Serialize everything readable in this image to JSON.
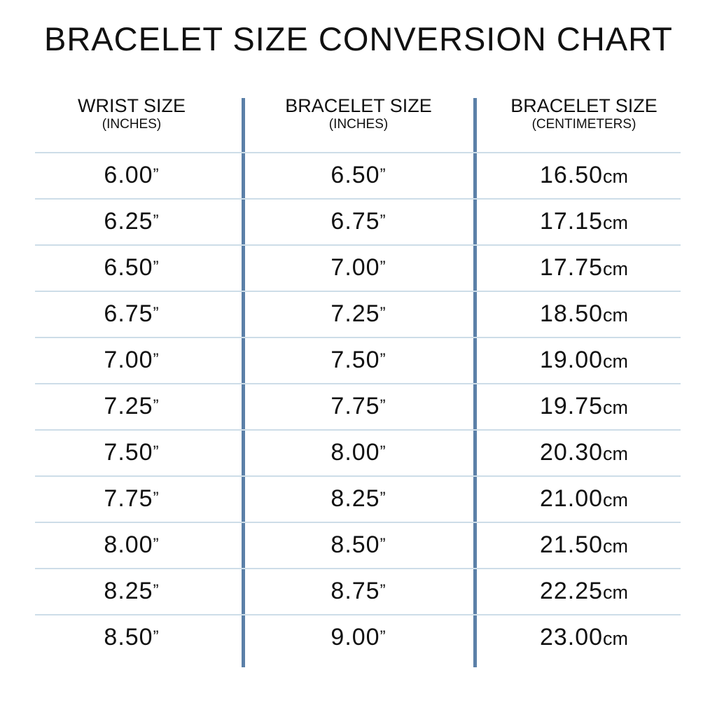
{
  "chart_data": {
    "type": "table",
    "title": "BRACELET SIZE CONVERSION CHART",
    "columns": [
      {
        "label": "WRIST SIZE",
        "sublabel": "(INCHES)",
        "unit": "”"
      },
      {
        "label": "BRACELET SIZE",
        "sublabel": "(INCHES)",
        "unit": "”"
      },
      {
        "label": "BRACELET SIZE",
        "sublabel": "(CENTIMETERS)",
        "unit": "cm"
      }
    ],
    "rows": [
      [
        "6.00",
        "6.50",
        "16.50"
      ],
      [
        "6.25",
        "6.75",
        "17.15"
      ],
      [
        "6.50",
        "7.00",
        "17.75"
      ],
      [
        "6.75",
        "7.25",
        "18.50"
      ],
      [
        "7.00",
        "7.50",
        "19.00"
      ],
      [
        "7.25",
        "7.75",
        "19.75"
      ],
      [
        "7.50",
        "8.00",
        "20.30"
      ],
      [
        "7.75",
        "8.25",
        "21.00"
      ],
      [
        "8.00",
        "8.50",
        "21.50"
      ],
      [
        "8.25",
        "8.75",
        "22.25"
      ],
      [
        "8.50",
        "9.00",
        "23.00"
      ]
    ],
    "colors": {
      "divider": "#5b80a8",
      "row_line": "#cddde8",
      "text": "#111111"
    }
  }
}
